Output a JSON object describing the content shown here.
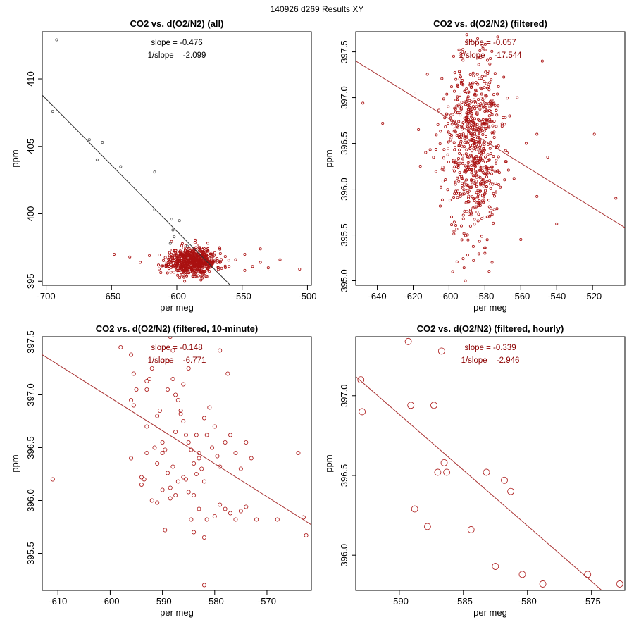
{
  "figure": {
    "title": "140926   d269   Results XY",
    "line_color": "#333333",
    "point_color_primary": "#aa1111",
    "point_color_secondary": "#555555",
    "text_color": "#8b0000"
  },
  "chart_data": [
    {
      "type": "scatter",
      "title": "CO2 vs. d(O2/N2) (all)",
      "xlabel": "per meg",
      "ylabel": "ppm",
      "xlim": [
        -703,
        -497
      ],
      "ylim": [
        394.7,
        413.5
      ],
      "xticks": [
        -700,
        -650,
        -600,
        -550,
        -500
      ],
      "yticks": [
        395,
        400,
        405,
        410
      ],
      "slope_label": "slope = -0.476",
      "inv_slope_label": "1/slope = -2.099",
      "annotation_color": "#000000",
      "fit_line": {
        "slope": -0.476,
        "points": [
          [
            -703,
            408.8
          ],
          [
            -559,
            394.7
          ]
        ],
        "color": "#333333"
      },
      "marker_size": 1.6,
      "outlier_points": [
        [
          -692,
          412.9
        ],
        [
          -695,
          407.6
        ],
        [
          -667,
          405.5
        ],
        [
          -657,
          405.3
        ],
        [
          -661,
          404.0
        ],
        [
          -643,
          403.5
        ],
        [
          -617,
          403.1
        ],
        [
          -617,
          400.3
        ],
        [
          -604,
          399.6
        ],
        [
          -603,
          398.8
        ],
        [
          -598,
          399.5
        ],
        [
          -602,
          398.3
        ],
        [
          -592,
          397.6
        ],
        [
          -605,
          397.8
        ]
      ],
      "cluster": {
        "count": 650,
        "center": [
          -588,
          396.5
        ],
        "spread": [
          9,
          0.5
        ],
        "seed": 11
      },
      "scatter_points": [
        [
          -648,
          397.0
        ],
        [
          -636,
          396.8
        ],
        [
          -628,
          396.4
        ],
        [
          -621,
          396.9
        ],
        [
          -614,
          396.2
        ],
        [
          -560,
          396.1
        ],
        [
          -555,
          396.6
        ],
        [
          -548,
          397.0
        ],
        [
          -542,
          396.1
        ],
        [
          -536,
          397.4
        ],
        [
          -530,
          396.0
        ],
        [
          -521,
          396.6
        ],
        [
          -506,
          395.9
        ],
        [
          -548,
          395.8
        ],
        [
          -536,
          396.4
        ]
      ]
    },
    {
      "type": "scatter",
      "title": "CO2 vs. d(O2/N2) (filtered)",
      "xlabel": "per meg",
      "ylabel": "ppm",
      "xlim": [
        -652,
        -502
      ],
      "ylim": [
        394.95,
        397.72
      ],
      "xticks": [
        -640,
        -620,
        -600,
        -580,
        -560,
        -540,
        -520
      ],
      "yticks": [
        395.0,
        395.5,
        396.0,
        396.5,
        397.0,
        397.5
      ],
      "slope_label": "slope = -0.057",
      "inv_slope_label": "1/slope = -17.544",
      "annotation_color": "#8b0000",
      "fit_line": {
        "slope": -0.057,
        "points": [
          [
            -652,
            397.4
          ],
          [
            -502,
            395.58
          ]
        ],
        "color": "#aa3333"
      },
      "marker_size": 1.6,
      "cluster": {
        "count": 700,
        "center": [
          -587,
          396.48
        ],
        "spread": [
          8,
          0.5
        ],
        "seed": 23
      },
      "scatter_points": [
        [
          -648,
          396.94
        ],
        [
          -637,
          396.72
        ],
        [
          -619,
          397.05
        ],
        [
          -617,
          396.65
        ],
        [
          -616,
          396.25
        ],
        [
          -613,
          396.4
        ],
        [
          -598,
          395.1
        ],
        [
          -560,
          395.45
        ],
        [
          -551,
          395.92
        ],
        [
          -551,
          396.6
        ],
        [
          -548,
          397.4
        ],
        [
          -545,
          396.35
        ],
        [
          -540,
          395.62
        ],
        [
          -519,
          396.6
        ],
        [
          -507,
          395.9
        ],
        [
          -576,
          395.2
        ],
        [
          -580,
          395.3
        ],
        [
          -583,
          395.43
        ],
        [
          -557,
          396.5
        ],
        [
          -562,
          397.0
        ]
      ]
    },
    {
      "type": "scatter",
      "title": "CO2 vs. d(O2/N2) (filtered, 10-minute)",
      "xlabel": "per meg",
      "ylabel": "ppm",
      "xlim": [
        -613,
        -561.5
      ],
      "ylim": [
        395.15,
        397.55
      ],
      "xticks": [
        -610,
        -600,
        -590,
        -580,
        -570
      ],
      "yticks": [
        395.5,
        396.0,
        396.5,
        397.0,
        397.5
      ],
      "slope_label": "slope = -0.148",
      "inv_slope_label": "1/slope = -6.771",
      "annotation_color": "#8b0000",
      "fit_line": {
        "slope": -0.148,
        "points": [
          [
            -613,
            397.38
          ],
          [
            -561.5,
            395.77
          ]
        ],
        "color": "#aa3333"
      },
      "marker_size": 2.6,
      "scatter_points": [
        [
          -611,
          396.2
        ],
        [
          -598,
          397.45
        ],
        [
          -596,
          397.38
        ],
        [
          -595.5,
          397.2
        ],
        [
          -595,
          397.05
        ],
        [
          -596,
          396.95
        ],
        [
          -595.5,
          396.9
        ],
        [
          -596,
          396.4
        ],
        [
          -594,
          396.22
        ],
        [
          -593,
          396.45
        ],
        [
          -593,
          396.7
        ],
        [
          -593,
          397.05
        ],
        [
          -592.5,
          397.15
        ],
        [
          -592,
          397.25
        ],
        [
          -593,
          397.13
        ],
        [
          -591,
          396.8
        ],
        [
          -590.5,
          396.85
        ],
        [
          -590,
          396.55
        ],
        [
          -589.5,
          396.48
        ],
        [
          -589,
          397.05
        ],
        [
          -589,
          397.32
        ],
        [
          -588.5,
          397.55
        ],
        [
          -588,
          397.42
        ],
        [
          -588,
          397.15
        ],
        [
          -587.5,
          397.0
        ],
        [
          -587,
          396.95
        ],
        [
          -586.5,
          396.82
        ],
        [
          -586,
          396.75
        ],
        [
          -585.5,
          396.62
        ],
        [
          -585,
          396.55
        ],
        [
          -585,
          397.25
        ],
        [
          -584.5,
          396.48
        ],
        [
          -584,
          396.35
        ],
        [
          -583.5,
          396.25
        ],
        [
          -583,
          396.4
        ],
        [
          -582.5,
          396.3
        ],
        [
          -582,
          396.18
        ],
        [
          -581.5,
          396.62
        ],
        [
          -581,
          396.88
        ],
        [
          -580,
          396.7
        ],
        [
          -579,
          396.32
        ],
        [
          -579,
          397.42
        ],
        [
          -578,
          396.55
        ],
        [
          -577.5,
          397.2
        ],
        [
          -577,
          396.62
        ],
        [
          -576,
          396.45
        ],
        [
          -575,
          396.3
        ],
        [
          -574,
          396.55
        ],
        [
          -573,
          396.4
        ],
        [
          -564,
          396.45
        ],
        [
          -592,
          396.0
        ],
        [
          -591,
          395.98
        ],
        [
          -590,
          396.1
        ],
        [
          -589,
          396.26
        ],
        [
          -588.5,
          396.12
        ],
        [
          -588,
          396.32
        ],
        [
          -587.5,
          396.05
        ],
        [
          -587,
          396.18
        ],
        [
          -586,
          396.22
        ],
        [
          -585,
          396.08
        ],
        [
          -584.5,
          395.82
        ],
        [
          -584,
          395.7
        ],
        [
          -583,
          395.92
        ],
        [
          -582,
          395.65
        ],
        [
          -581.5,
          395.82
        ],
        [
          -580,
          395.85
        ],
        [
          -579,
          395.96
        ],
        [
          -578,
          395.92
        ],
        [
          -577,
          395.88
        ],
        [
          -576,
          395.82
        ],
        [
          -575,
          395.9
        ],
        [
          -574,
          395.94
        ],
        [
          -572,
          395.82
        ],
        [
          -568,
          395.82
        ],
        [
          -563,
          395.84
        ],
        [
          -562.5,
          395.67
        ],
        [
          -582,
          395.2
        ],
        [
          -586.5,
          396.85
        ],
        [
          -590,
          397.32
        ],
        [
          -589.5,
          395.72
        ],
        [
          -588.5,
          396.02
        ],
        [
          -594,
          396.15
        ],
        [
          -593.5,
          396.2
        ],
        [
          -591,
          396.35
        ],
        [
          -590,
          396.45
        ],
        [
          -583.5,
          396.62
        ],
        [
          -582,
          396.78
        ],
        [
          -580.5,
          396.5
        ],
        [
          -579.5,
          396.42
        ],
        [
          -586,
          397.1
        ],
        [
          -587.5,
          396.65
        ],
        [
          -585.5,
          396.2
        ],
        [
          -584,
          396.05
        ],
        [
          -583,
          396.45
        ],
        [
          -591.5,
          396.5
        ]
      ]
    },
    {
      "type": "scatter",
      "title": "CO2 vs. d(O2/N2) (filtered, hourly)",
      "xlabel": "per meg",
      "ylabel": "ppm",
      "xlim": [
        -593.4,
        -572.4
      ],
      "ylim": [
        395.78,
        397.37
      ],
      "xticks": [
        -590,
        -585,
        -580,
        -575
      ],
      "yticks": [
        396.0,
        396.5,
        397.0
      ],
      "slope_label": "slope = -0.339",
      "inv_slope_label": "1/slope = -2.946",
      "annotation_color": "#8b0000",
      "fit_line": {
        "slope": -0.339,
        "points": [
          [
            -593.4,
            397.12
          ],
          [
            -574.2,
            395.78
          ]
        ],
        "color": "#aa3333"
      },
      "marker_size": 4.5,
      "scatter_points": [
        [
          -593,
          397.1
        ],
        [
          -592.9,
          396.9
        ],
        [
          -589.3,
          397.34
        ],
        [
          -589.1,
          396.94
        ],
        [
          -587.3,
          396.94
        ],
        [
          -586.7,
          397.28
        ],
        [
          -586.5,
          396.58
        ],
        [
          -587,
          396.52
        ],
        [
          -586.3,
          396.52
        ],
        [
          -583.2,
          396.52
        ],
        [
          -581.8,
          396.47
        ],
        [
          -581.3,
          396.4
        ],
        [
          -588.8,
          396.29
        ],
        [
          -587.8,
          396.18
        ],
        [
          -584.4,
          396.16
        ],
        [
          -582.5,
          395.93
        ],
        [
          -580.4,
          395.88
        ],
        [
          -578.8,
          395.82
        ],
        [
          -575.3,
          395.88
        ],
        [
          -572.8,
          395.82
        ]
      ]
    }
  ]
}
